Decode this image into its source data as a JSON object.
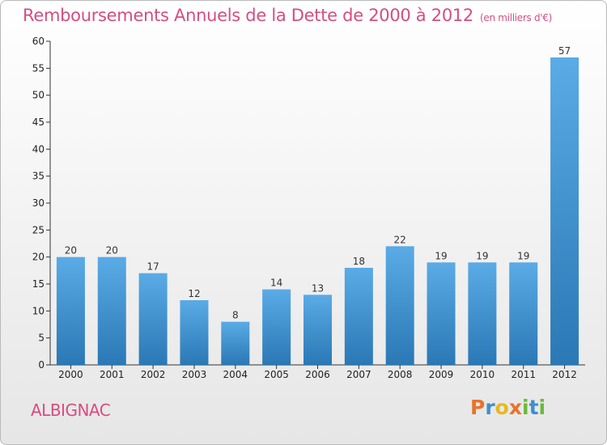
{
  "chart_data": {
    "type": "bar",
    "title": "Remboursements Annuels de la Dette de 2000 à 2012",
    "subtitle": "(en milliers d'€)",
    "categories": [
      "2000",
      "2001",
      "2002",
      "2003",
      "2004",
      "2005",
      "2006",
      "2007",
      "2008",
      "2009",
      "2010",
      "2011",
      "2012"
    ],
    "values": [
      20,
      20,
      17,
      12,
      8,
      14,
      13,
      18,
      22,
      19,
      19,
      19,
      57
    ],
    "ylim": [
      0,
      60
    ],
    "yticks": [
      "0",
      "5",
      "10",
      "15",
      "20",
      "25",
      "30",
      "35",
      "40",
      "45",
      "50",
      "55",
      "60"
    ],
    "grid": false,
    "bar_color_top": "#5aabe6",
    "bar_color_bottom": "#2a78b5"
  },
  "footer": {
    "commune": "ALBIGNAC",
    "logo": [
      "P",
      "r",
      "o",
      "x",
      "i",
      "t",
      "i"
    ],
    "logo_colors": [
      "#e8732a",
      "#3d8fd1",
      "#e8b820",
      "#e8732a",
      "#6aba3a",
      "#3d8fd1",
      "#6aba3a"
    ]
  },
  "colors": {
    "title": "#d64d80",
    "axis": "#333333"
  }
}
